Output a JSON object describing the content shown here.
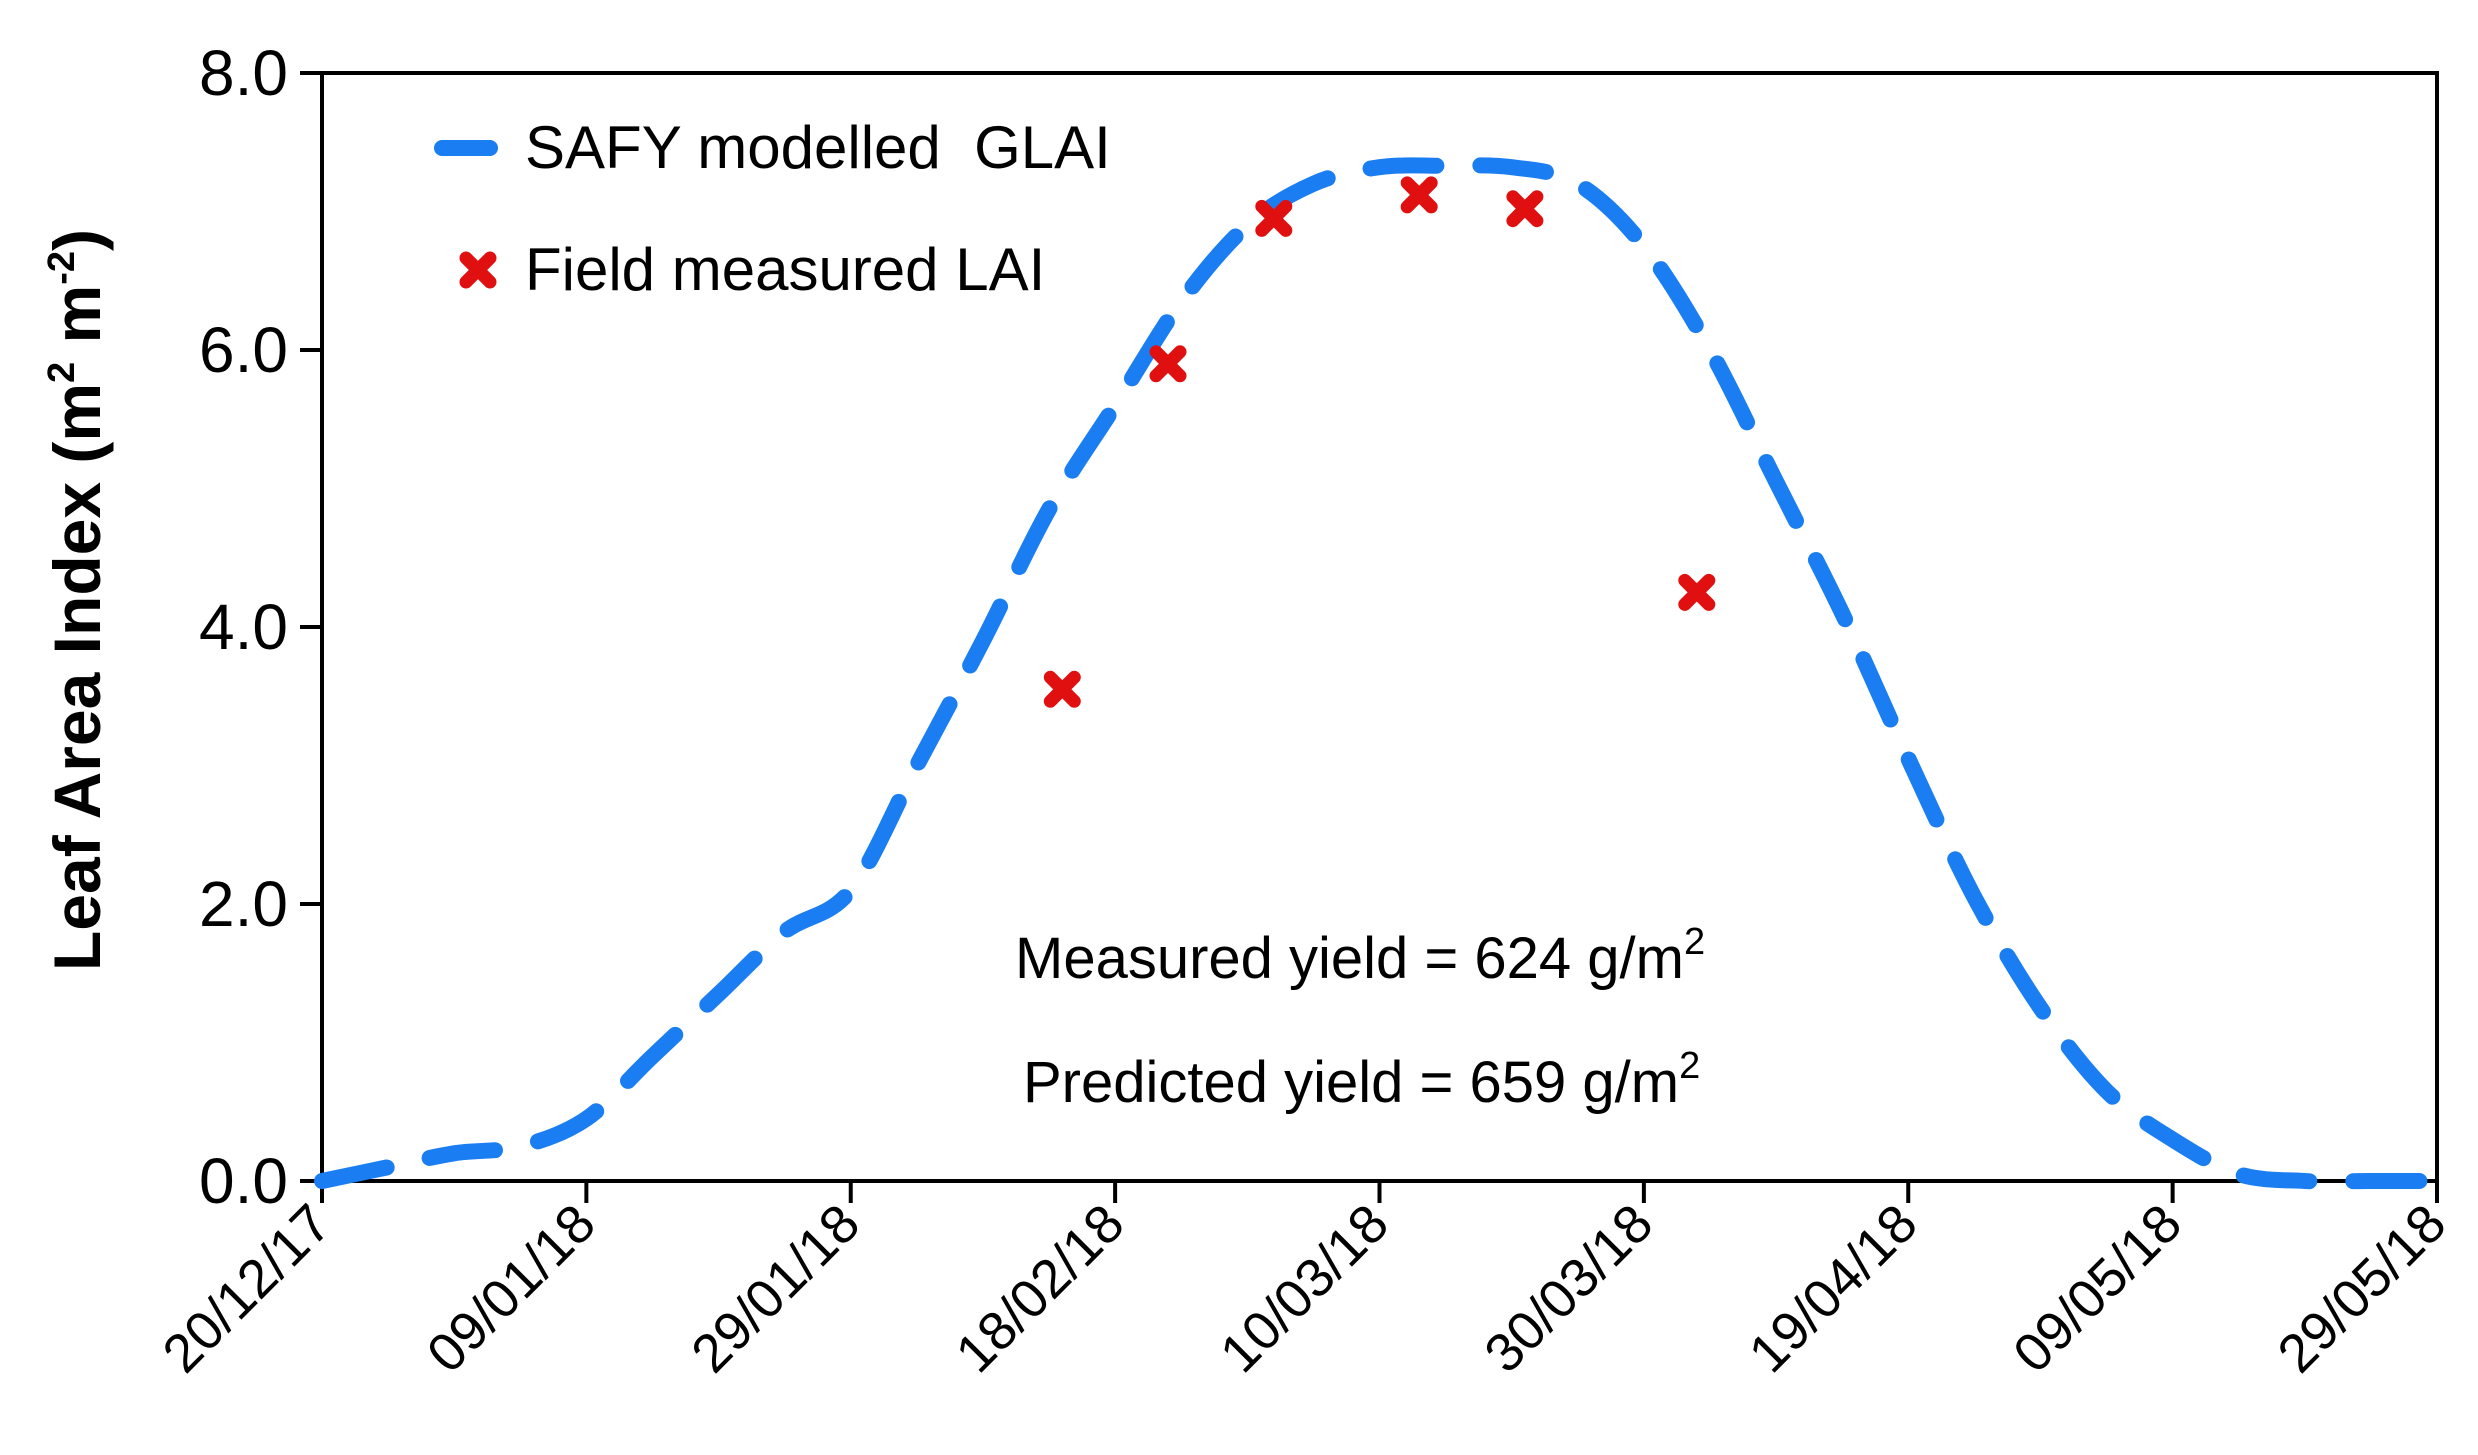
{
  "chart_data": {
    "type": "line",
    "ylabel": {
      "prefix": "Leaf Area Index (m",
      "sup1": "2",
      "middle": " m",
      "sup2": "-2",
      "suffix": ")"
    },
    "xlabel": "",
    "x_ticks": [
      "20/12/17",
      "09/01/18",
      "29/01/18",
      "18/02/18",
      "10/03/18",
      "30/03/18",
      "19/04/18",
      "09/05/18",
      "29/05/18"
    ],
    "y_ticks": [
      "0.0",
      "2.0",
      "4.0",
      "6.0",
      "8.0"
    ],
    "ylim": [
      0,
      8
    ],
    "xlim": [
      "20/12/17",
      "29/05/18"
    ],
    "grid": false,
    "legend_position": "top-left",
    "series": [
      {
        "name": "SAFY modelled  GLAI",
        "style": "dashed-line",
        "color": "#1a7ef2",
        "x": [
          "20/12/17",
          "25/12/17",
          "30/12/17",
          "04/01/18",
          "09/01/18",
          "14/01/18",
          "19/01/18",
          "24/01/18",
          "29/01/18",
          "03/02/18",
          "08/02/18",
          "13/02/18",
          "18/02/18",
          "23/02/18",
          "28/02/18",
          "05/03/18",
          "10/03/18",
          "15/03/18",
          "20/03/18",
          "25/03/18",
          "30/03/18",
          "04/04/18",
          "09/04/18",
          "14/04/18",
          "19/04/18",
          "24/04/18",
          "29/04/18",
          "04/05/18",
          "09/05/18",
          "14/05/18",
          "19/05/18",
          "24/05/18",
          "29/05/18"
        ],
        "y": [
          0.0,
          0.1,
          0.2,
          0.25,
          0.45,
          0.9,
          1.35,
          1.8,
          2.1,
          3.0,
          3.9,
          4.85,
          5.6,
          6.35,
          6.9,
          7.2,
          7.32,
          7.33,
          7.32,
          7.2,
          6.75,
          6.0,
          5.05,
          4.1,
          3.05,
          2.05,
          1.25,
          0.65,
          0.3,
          0.05,
          0.0,
          0.0,
          0.0
        ]
      },
      {
        "name": "Field measured LAI",
        "style": "marker-x",
        "color": "#e01010",
        "x": [
          "14/02/18",
          "22/02/18",
          "02/03/18",
          "13/03/18",
          "21/03/18",
          "03/04/18"
        ],
        "y": [
          3.55,
          5.9,
          6.95,
          7.12,
          7.02,
          4.25
        ]
      }
    ],
    "annotations": [
      {
        "prefix": "Measured yield = 624 g/m",
        "sup": "2"
      },
      {
        "prefix": "Predicted yield = 659 g/m",
        "sup": "2"
      }
    ]
  }
}
